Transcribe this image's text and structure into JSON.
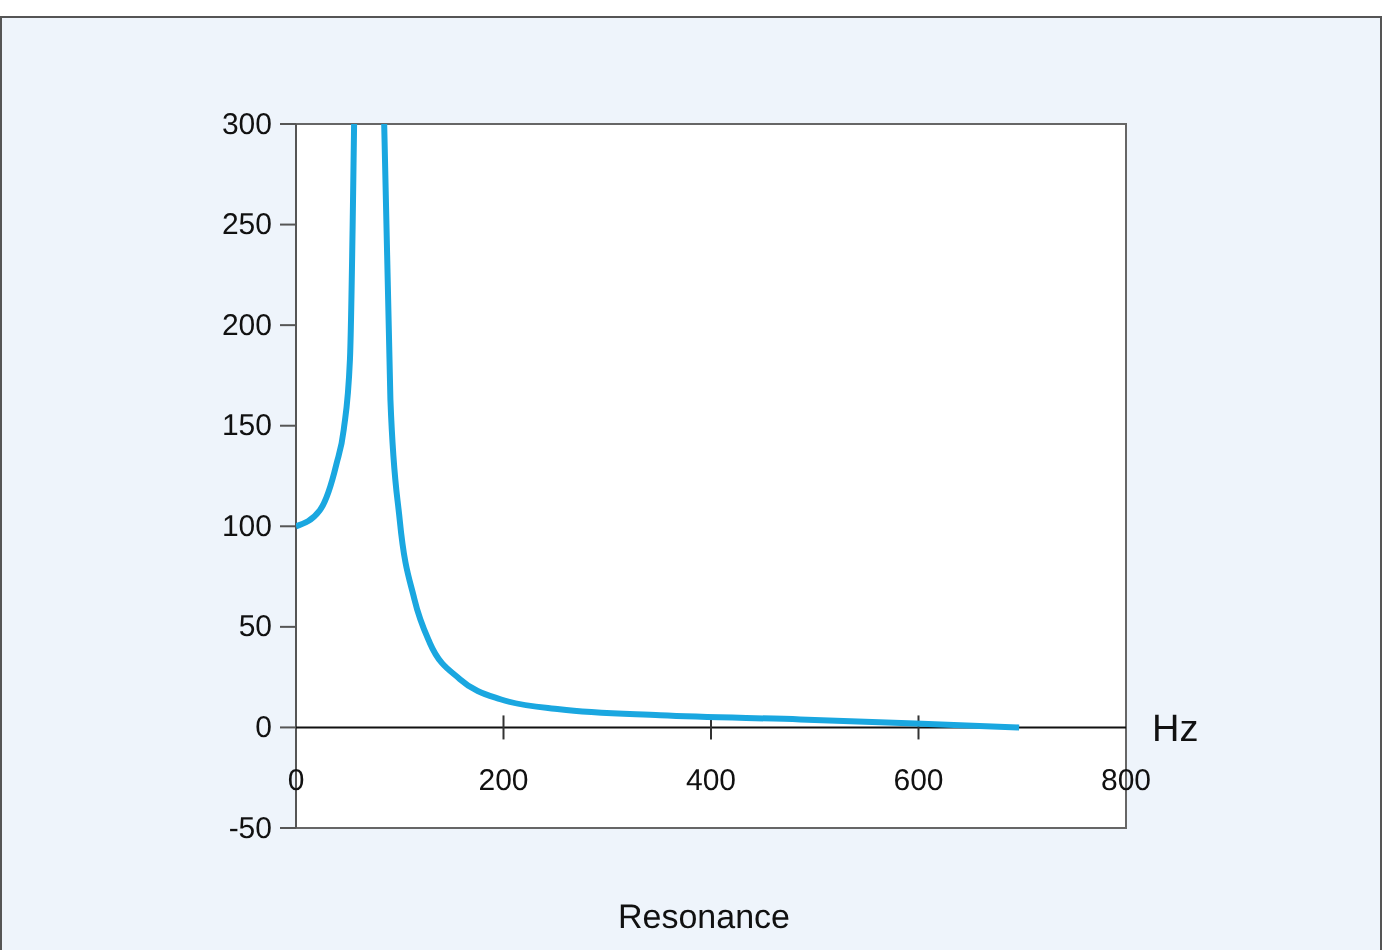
{
  "chart_data": {
    "type": "line",
    "title": "Resonance",
    "xlabel": "Hz",
    "x": [
      0,
      23,
      39,
      46,
      52,
      56,
      70,
      85,
      91,
      100,
      114,
      129,
      158,
      197,
      254,
      351,
      486,
      597,
      697
    ],
    "series": [
      {
        "color": "#1aa7e0",
        "values": [
          100,
          108,
          131,
          148,
          183,
          300,
          null,
          300,
          163,
          103,
          64,
          42,
          24,
          14,
          9,
          6,
          4,
          2,
          0
        ]
      }
    ],
    "xlim": [
      0,
      800
    ],
    "xticks": [
      0,
      200,
      400,
      600,
      800
    ],
    "ylim": [
      -50,
      300
    ],
    "yticks": [
      -50,
      0,
      50,
      100,
      150,
      200,
      250,
      300
    ],
    "marker": "none",
    "line_style": "solid"
  }
}
